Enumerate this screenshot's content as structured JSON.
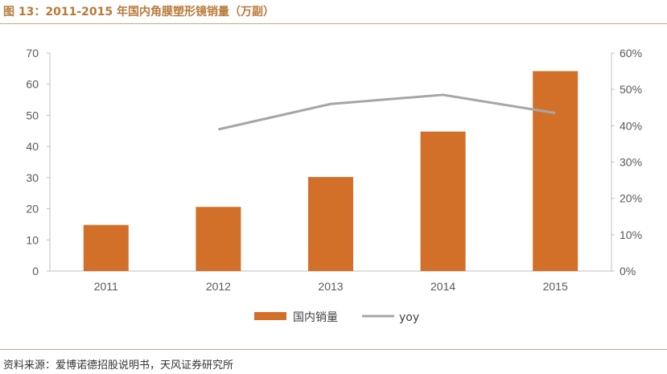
{
  "header": {
    "title": "图 13：2011-2015 年国内角膜塑形镜销量（万副）"
  },
  "footer": {
    "source": "资料来源：爱博诺德招股说明书，天风证券研究所"
  },
  "colors": {
    "bar": "#d2702a",
    "line": "#a6a6a6",
    "axis": "#bfbfbf",
    "title": "#b87a3a",
    "rule": "#c9a77f"
  },
  "chart_data": {
    "type": "bar",
    "title": "",
    "categories": [
      "2011",
      "2012",
      "2013",
      "2014",
      "2015"
    ],
    "ylim": [
      0,
      70
    ],
    "yticks": [
      0,
      10,
      20,
      30,
      40,
      50,
      60,
      70
    ],
    "y2lim": [
      0,
      60
    ],
    "y2ticks": [
      "0%",
      "10%",
      "20%",
      "30%",
      "40%",
      "50%",
      "60%"
    ],
    "grid": false,
    "legend_position": "bottom",
    "series": [
      {
        "name": "国内销量",
        "type": "bar",
        "axis": "left",
        "values": [
          14.8,
          20.6,
          30.2,
          44.8,
          64.2
        ]
      },
      {
        "name": "yoy",
        "type": "line",
        "axis": "right",
        "values": [
          null,
          39,
          46,
          48.5,
          43.5
        ]
      }
    ]
  }
}
